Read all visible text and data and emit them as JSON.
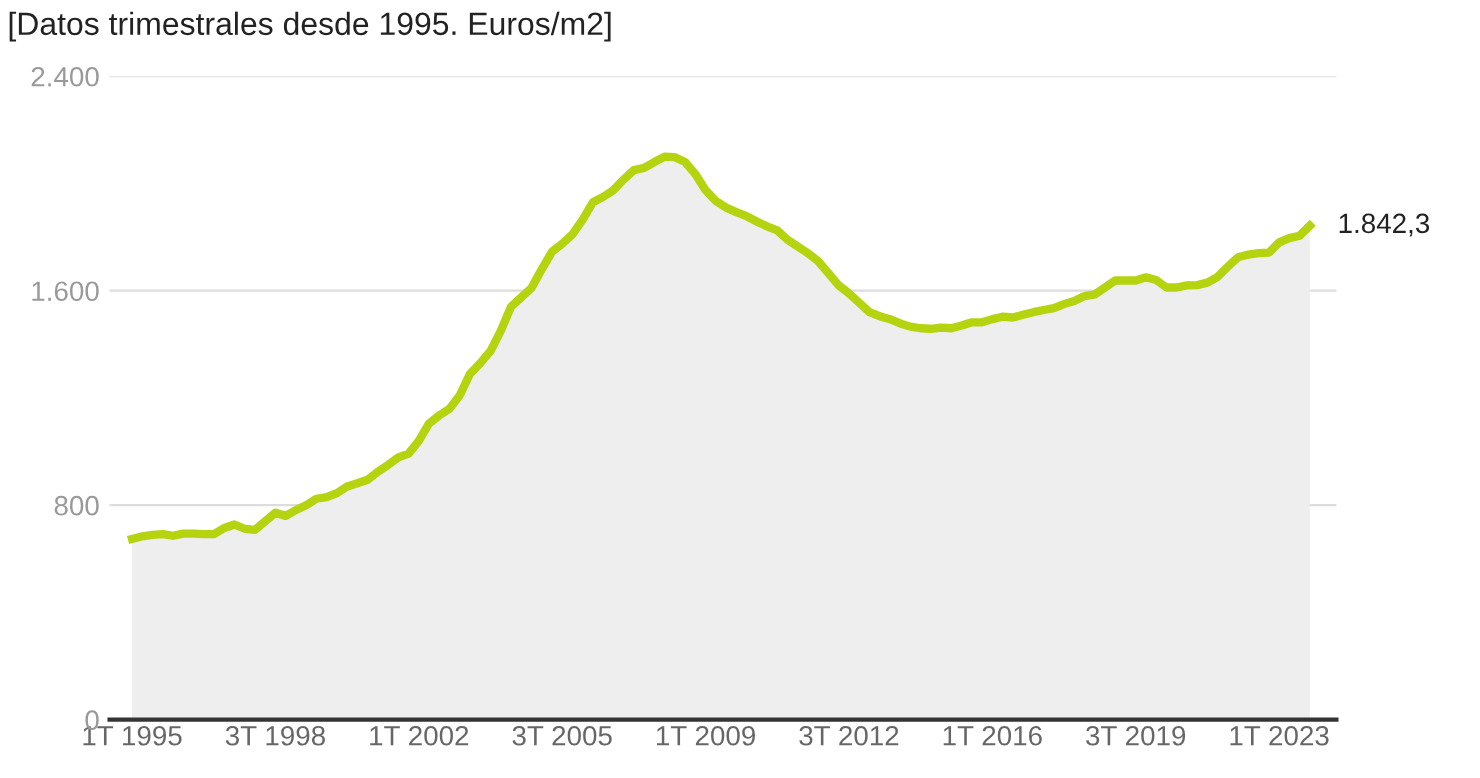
{
  "chart_data": {
    "type": "area",
    "title": "[Datos trimestrales desde 1995. Euros/m2]",
    "categories": [
      "1T 1995",
      null,
      null,
      null,
      null,
      null,
      null,
      null,
      null,
      null,
      null,
      null,
      null,
      null,
      "3T 1998",
      null,
      null,
      null,
      null,
      null,
      null,
      null,
      null,
      null,
      null,
      null,
      null,
      null,
      "1T 2002",
      null,
      null,
      null,
      null,
      null,
      null,
      null,
      null,
      null,
      null,
      null,
      null,
      null,
      "3T 2005",
      null,
      null,
      null,
      null,
      null,
      null,
      null,
      null,
      null,
      null,
      null,
      null,
      null,
      "1T 2009",
      null,
      null,
      null,
      null,
      null,
      null,
      null,
      null,
      null,
      null,
      null,
      null,
      null,
      "3T 2012",
      null,
      null,
      null,
      null,
      null,
      null,
      null,
      null,
      null,
      null,
      null,
      null,
      null,
      "1T 2016",
      null,
      null,
      null,
      null,
      null,
      null,
      null,
      null,
      null,
      null,
      null,
      null,
      null,
      "3T 2019",
      null,
      null,
      null,
      null,
      null,
      null,
      null,
      null,
      null,
      null,
      null,
      null,
      null,
      "1T 2023",
      null,
      null,
      null
    ],
    "series": [
      {
        "color": "#b5d40f",
        "values": [
          674,
          684,
          689,
          692,
          686,
          694,
          694,
          692,
          692,
          715,
          728,
          712,
          708,
          740,
          772,
          760,
          782,
          800,
          824,
          830,
          845,
          870,
          882,
          895,
          925,
          950,
          978,
          992,
          1040,
          1105,
          1135,
          1160,
          1210,
          1290,
          1330,
          1375,
          1450,
          1540,
          1575,
          1610,
          1680,
          1745,
          1775,
          1810,
          1865,
          1930,
          1950,
          1975,
          2015,
          2050,
          2058,
          2080,
          2100,
          2098,
          2080,
          2035,
          1975,
          1935,
          1910,
          1893,
          1878,
          1858,
          1840,
          1825,
          1790,
          1765,
          1740,
          1710,
          1665,
          1620,
          1590,
          1555,
          1520,
          1505,
          1494,
          1478,
          1466,
          1460,
          1458,
          1462,
          1460,
          1470,
          1482,
          1482,
          1494,
          1503,
          1500,
          1510,
          1520,
          1528,
          1535,
          1550,
          1562,
          1580,
          1586,
          1612,
          1638,
          1638,
          1638,
          1650,
          1640,
          1612,
          1612,
          1620,
          1621,
          1630,
          1652,
          1690,
          1725,
          1735,
          1740,
          1742,
          1780,
          1796,
          1805,
          1842.3
        ],
        "value_labels": [
          null,
          null,
          null,
          null,
          null,
          null,
          null,
          null,
          null,
          null,
          null,
          null,
          null,
          null,
          null,
          null,
          null,
          null,
          null,
          null,
          null,
          null,
          null,
          null,
          null,
          null,
          null,
          null,
          null,
          null,
          null,
          null,
          null,
          null,
          null,
          null,
          null,
          null,
          null,
          null,
          null,
          null,
          null,
          null,
          null,
          null,
          null,
          null,
          null,
          null,
          null,
          null,
          null,
          null,
          null,
          null,
          null,
          null,
          null,
          null,
          null,
          null,
          null,
          null,
          null,
          null,
          null,
          null,
          null,
          null,
          null,
          null,
          null,
          null,
          null,
          null,
          null,
          null,
          null,
          null,
          null,
          null,
          null,
          null,
          null,
          null,
          null,
          null,
          null,
          null,
          null,
          null,
          null,
          null,
          null,
          null,
          null,
          null,
          null,
          null,
          null,
          null,
          null,
          null,
          null,
          null,
          null,
          null,
          null,
          null,
          null,
          null,
          null,
          null,
          null,
          "1.842,3"
        ]
      }
    ],
    "ylim": [
      0,
      2400
    ],
    "yticks": [
      0,
      {
        "value": 800,
        "label": "800"
      },
      {
        "value": 1600,
        "label": "1.600"
      },
      {
        "value": 2400,
        "label": "2.400"
      }
    ],
    "grid": "y",
    "marker": "none",
    "line_style": "solid",
    "legend": false
  }
}
